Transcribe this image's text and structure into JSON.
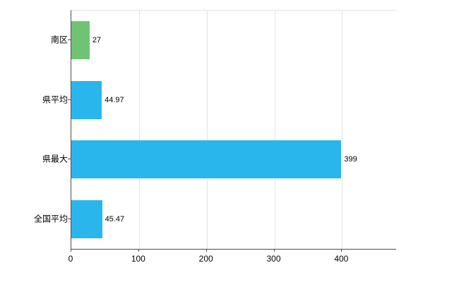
{
  "chart_data": {
    "type": "bar",
    "orientation": "horizontal",
    "title": "",
    "xlabel": "",
    "ylabel": "",
    "categories": [
      "南区",
      "県平均",
      "県最大",
      "全国平均"
    ],
    "values": [
      27,
      44.97,
      399,
      45.47
    ],
    "value_labels": [
      "27",
      "44.97",
      "399",
      "45.47"
    ],
    "bar_colors": [
      "#71c374",
      "#29b6ec",
      "#29b6ec",
      "#29b6ec"
    ],
    "xlim": [
      0,
      480
    ],
    "x_ticks": [
      0,
      100,
      200,
      300,
      400
    ],
    "x_tick_labels": [
      "0",
      "100",
      "200",
      "300",
      "400"
    ],
    "grid": true,
    "legend": "none",
    "colors": {
      "background": "#ffffff",
      "gridline": "#e3e3e3",
      "axis": "#4d4d4d",
      "green_bar": "#71c374",
      "blue_bar": "#29b6ec"
    }
  }
}
